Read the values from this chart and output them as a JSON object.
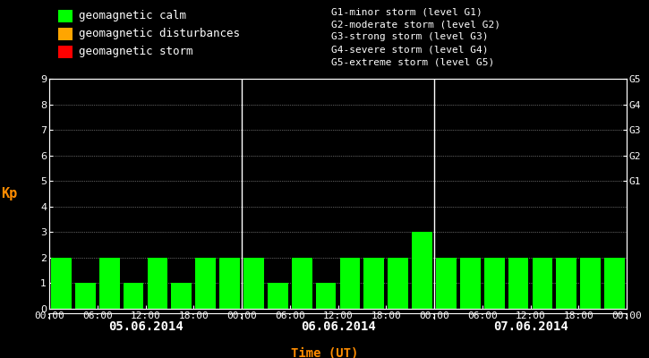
{
  "bg_color": "#000000",
  "plot_bg_color": "#000000",
  "bar_color_calm": "#00ff00",
  "bar_color_disturbance": "#ffa500",
  "bar_color_storm": "#ff0000",
  "text_color": "#ffffff",
  "ylabel_color": "#ff8c00",
  "xlabel_color": "#ff8c00",
  "date_label_color": "#ffffff",
  "grid_color": "#ffffff",
  "divider_color": "#ffffff",
  "kp_values": [
    2,
    1,
    2,
    1,
    2,
    1,
    2,
    2,
    2,
    1,
    2,
    1,
    2,
    2,
    2,
    3,
    2,
    2,
    2,
    2,
    2,
    2,
    2,
    2
  ],
  "n_days": 3,
  "n_bars_per_day": 8,
  "ylim": [
    0,
    9
  ],
  "yticks": [
    0,
    1,
    2,
    3,
    4,
    5,
    6,
    7,
    8,
    9
  ],
  "right_labels": [
    "G1",
    "G2",
    "G3",
    "G4",
    "G5"
  ],
  "right_label_yvals": [
    5,
    6,
    7,
    8,
    9
  ],
  "date_labels": [
    "05.06.2014",
    "06.06.2014",
    "07.06.2014"
  ],
  "time_ticks": [
    "00:00",
    "06:00",
    "12:00",
    "18:00",
    "00:00"
  ],
  "ylabel": "Kp",
  "xlabel": "Time (UT)",
  "legend_items": [
    {
      "label": "geomagnetic calm",
      "color": "#00ff00"
    },
    {
      "label": "geomagnetic disturbances",
      "color": "#ffa500"
    },
    {
      "label": "geomagnetic storm",
      "color": "#ff0000"
    }
  ],
  "storm_legend": [
    "G1-minor storm (level G1)",
    "G2-moderate storm (level G2)",
    "G3-strong storm (level G3)",
    "G4-severe storm (level G4)",
    "G5-extreme storm (level G5)"
  ],
  "font_family": "monospace",
  "font_size_legend": 9,
  "font_size_storm": 8,
  "font_size_ticks": 8,
  "font_size_dates": 10,
  "font_size_ylabel": 11,
  "font_size_xlabel": 10
}
